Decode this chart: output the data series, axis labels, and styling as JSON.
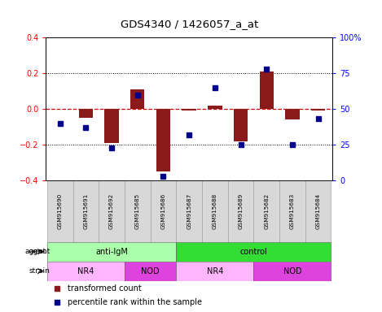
{
  "title": "GDS4340 / 1426057_a_at",
  "samples": [
    "GSM915690",
    "GSM915691",
    "GSM915692",
    "GSM915685",
    "GSM915686",
    "GSM915687",
    "GSM915688",
    "GSM915689",
    "GSM915682",
    "GSM915683",
    "GSM915684"
  ],
  "bar_values": [
    0.0,
    -0.05,
    -0.19,
    0.11,
    -0.35,
    -0.01,
    0.02,
    -0.18,
    0.21,
    -0.06,
    -0.01
  ],
  "dot_values": [
    40,
    37,
    23,
    60,
    3,
    32,
    65,
    25,
    78,
    25,
    43
  ],
  "bar_color": "#8B1A1A",
  "dot_color": "#00008B",
  "zero_line_color": "#CC0000",
  "ylim_left": [
    -0.4,
    0.4
  ],
  "ylim_right": [
    0,
    100
  ],
  "yticks_left": [
    -0.4,
    -0.2,
    0.0,
    0.2,
    0.4
  ],
  "yticks_right": [
    0,
    25,
    50,
    75,
    100
  ],
  "agent_groups": [
    {
      "label": "anti-IgM",
      "start": 0,
      "end": 4,
      "color": "#AAFFAA"
    },
    {
      "label": "control",
      "start": 5,
      "end": 10,
      "color": "#33DD33"
    }
  ],
  "strain_groups": [
    {
      "label": "NR4",
      "start": 0,
      "end": 2,
      "color": "#FFB6FF"
    },
    {
      "label": "NOD",
      "start": 3,
      "end": 4,
      "color": "#DD44DD"
    },
    {
      "label": "NR4",
      "start": 5,
      "end": 7,
      "color": "#FFB6FF"
    },
    {
      "label": "NOD",
      "start": 8,
      "end": 10,
      "color": "#DD44DD"
    }
  ],
  "agent_label": "agent",
  "strain_label": "strain",
  "legend_bar_label": "transformed count",
  "legend_dot_label": "percentile rank within the sample",
  "sample_bg_color": "#D8D8D8",
  "plot_bg_color": "#FFFFFF"
}
